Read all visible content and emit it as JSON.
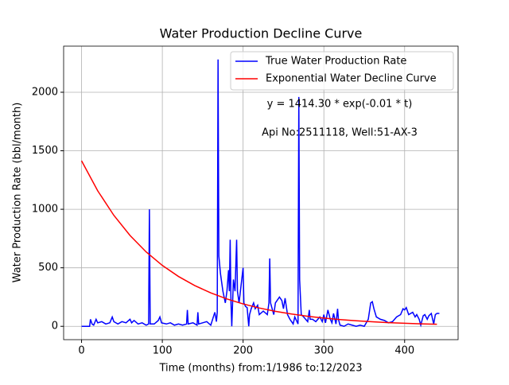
{
  "chart_data": {
    "type": "line",
    "title": "Water Production Decline Curve",
    "xlabel": "Time (months) from:1/1986 to:12/2023",
    "ylabel": "Water Production Rate (bbl/month)",
    "annotations": [
      "y = 1414.30 * exp(-0.01 * t)",
      "Api No:2511118, Well:51-AX-3"
    ],
    "xlim": [
      -22.2,
      466.2
    ],
    "ylim": [
      -114,
      2394
    ],
    "xticks": [
      0,
      100,
      200,
      300,
      400
    ],
    "yticks": [
      0,
      500,
      1000,
      1500,
      2000
    ],
    "grid": true,
    "legend": "upper right",
    "series": [
      {
        "name": "True Water Production Rate",
        "color": "#0000ff",
        "x": [
          0,
          5,
          10,
          11,
          13,
          15,
          18,
          20,
          25,
          30,
          35,
          38,
          40,
          45,
          50,
          55,
          60,
          62,
          65,
          70,
          75,
          80,
          83,
          84,
          85,
          90,
          95,
          97,
          99,
          105,
          110,
          115,
          120,
          125,
          130,
          131,
          132,
          138,
          143,
          144,
          145,
          150,
          155,
          160,
          165,
          167,
          168,
          169,
          170,
          172,
          175,
          178,
          180,
          182,
          183,
          184,
          185,
          186,
          188,
          190,
          192,
          193,
          195,
          198,
          200,
          201,
          203,
          205,
          207,
          208,
          210,
          213,
          215,
          218,
          220,
          225,
          230,
          232,
          233,
          234,
          236,
          238,
          240,
          245,
          248,
          250,
          252,
          255,
          258,
          260,
          262,
          264,
          266,
          268,
          269,
          270,
          272,
          275,
          280,
          282,
          283,
          286,
          290,
          295,
          298,
          300,
          302,
          305,
          308,
          310,
          312,
          315,
          317,
          318,
          320,
          325,
          330,
          335,
          340,
          345,
          350,
          355,
          358,
          360,
          362,
          365,
          370,
          375,
          380,
          385,
          390,
          395,
          398,
          400,
          402,
          405,
          410,
          413,
          415,
          418,
          420,
          423,
          425,
          428,
          430,
          433,
          436,
          438,
          440,
          443
        ],
        "values": [
          0,
          0,
          0,
          60,
          20,
          10,
          60,
          30,
          40,
          20,
          30,
          80,
          40,
          20,
          40,
          30,
          60,
          30,
          50,
          20,
          30,
          10,
          20,
          1000,
          20,
          20,
          50,
          80,
          30,
          20,
          30,
          10,
          20,
          10,
          20,
          140,
          20,
          30,
          10,
          120,
          20,
          30,
          40,
          10,
          120,
          40,
          120,
          2280,
          600,
          450,
          300,
          200,
          300,
          480,
          300,
          740,
          200,
          0,
          400,
          300,
          740,
          300,
          200,
          380,
          500,
          200,
          170,
          160,
          0,
          100,
          150,
          200,
          150,
          180,
          100,
          130,
          100,
          200,
          580,
          200,
          150,
          100,
          200,
          250,
          220,
          150,
          240,
          100,
          60,
          40,
          20,
          80,
          50,
          20,
          1960,
          400,
          100,
          80,
          40,
          140,
          60,
          60,
          40,
          80,
          40,
          100,
          30,
          140,
          60,
          30,
          110,
          20,
          150,
          60,
          10,
          0,
          20,
          10,
          0,
          10,
          0,
          60,
          200,
          210,
          150,
          80,
          60,
          50,
          30,
          40,
          80,
          100,
          150,
          140,
          160,
          100,
          120,
          80,
          100,
          60,
          10,
          90,
          100,
          60,
          90,
          110,
          20,
          100,
          110,
          110
        ]
      },
      {
        "name": "Exponential Water Decline Curve",
        "color": "#ff0000",
        "x": [
          0,
          20,
          40,
          60,
          80,
          100,
          120,
          140,
          160,
          180,
          200,
          220,
          240,
          260,
          280,
          300,
          320,
          340,
          360,
          380,
          400,
          420,
          440
        ],
        "values": [
          1414.3,
          1157.9,
          948.1,
          776.2,
          635.5,
          520.3,
          426.0,
          348.8,
          285.6,
          233.8,
          191.4,
          156.7,
          128.3,
          105.0,
          86.0,
          70.4,
          57.6,
          47.2,
          38.6,
          31.6,
          25.9,
          21.2,
          17.4
        ]
      }
    ]
  }
}
